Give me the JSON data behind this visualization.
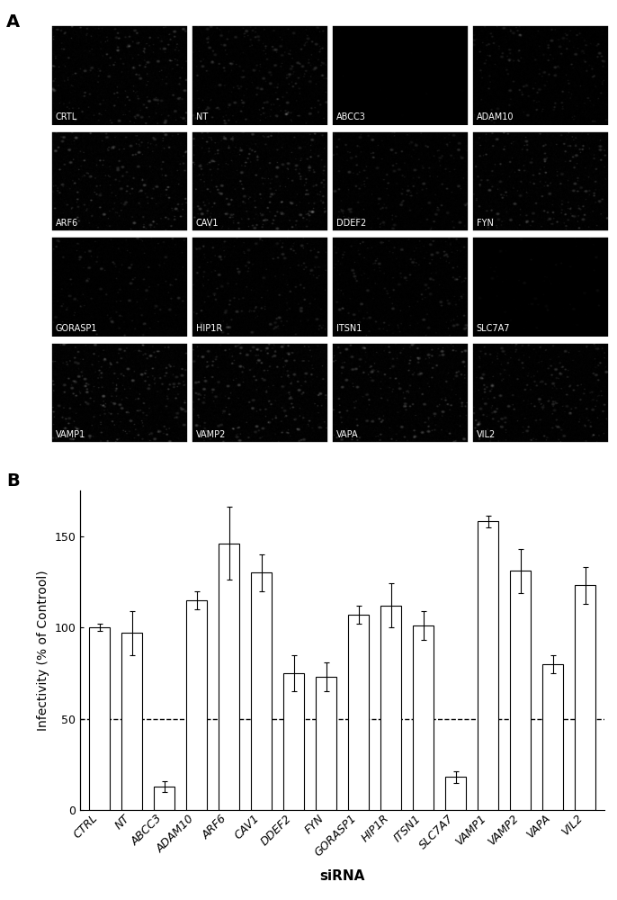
{
  "panel_b": {
    "categories": [
      "CTRL",
      "NT",
      "ABCC3",
      "ADAM10",
      "ARF6",
      "CAV1",
      "DDEF2",
      "FYN",
      "GORASP1",
      "HIP1R",
      "ITSN1",
      "SLC7A7",
      "VAMP1",
      "VAMP2",
      "VAPA",
      "VIL2"
    ],
    "values": [
      100,
      97,
      13,
      115,
      146,
      130,
      75,
      73,
      107,
      112,
      101,
      18,
      158,
      131,
      80,
      123
    ],
    "errors": [
      2,
      12,
      3,
      5,
      20,
      10,
      10,
      8,
      5,
      12,
      8,
      3,
      3,
      12,
      5,
      10
    ],
    "ylabel": "Infectivity (% of Controol)",
    "xlabel": "siRNA",
    "ylim": [
      0,
      175
    ],
    "yticks": [
      0,
      50,
      100,
      150
    ],
    "dashed_line_y": 50,
    "bar_color": "#ffffff",
    "bar_edgecolor": "#000000",
    "bar_linewidth": 0.8,
    "panel_label_b": "B",
    "xlabel_fontsize": 11,
    "ylabel_fontsize": 10,
    "tick_fontsize": 9,
    "xtick_rotation": 45,
    "xtick_ha": "right"
  },
  "panel_a": {
    "panel_label": "A",
    "grid_rows": 4,
    "grid_cols": 4,
    "labels": [
      "CRTL",
      "NT",
      "ABCC3",
      "ADAM10",
      "ARF6",
      "CAV1",
      "DDEF2",
      "FYN",
      "GORASP1",
      "HIP1R",
      "ITSN1",
      "SLC7A7",
      "VAMP1",
      "VAMP2",
      "VAPA",
      "VIL2"
    ],
    "intensities": [
      0.38,
      0.42,
      0.02,
      0.3,
      0.35,
      0.45,
      0.32,
      0.35,
      0.22,
      0.3,
      0.32,
      0.08,
      0.45,
      0.4,
      0.35,
      0.42
    ],
    "label_fontsize": 7,
    "label_color": "#ffffff"
  }
}
